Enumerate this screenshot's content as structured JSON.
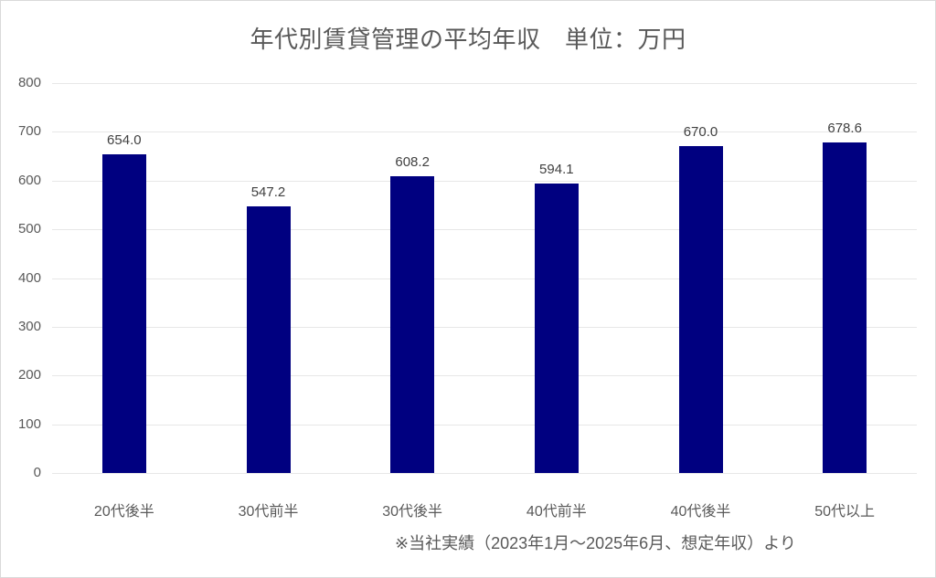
{
  "chart_data": {
    "type": "bar",
    "title": "年代別賃貸管理の平均年収　単位：万円",
    "categories": [
      "20代後半",
      "30代前半",
      "30代後半",
      "40代前半",
      "40代後半",
      "50代以上"
    ],
    "values": [
      654.0,
      547.2,
      608.2,
      594.1,
      670.0,
      678.6
    ],
    "value_labels": [
      "654.0",
      "547.2",
      "608.2",
      "594.1",
      "670.0",
      "678.6"
    ],
    "ylim": [
      0,
      800
    ],
    "ytick_step": 100,
    "yticks": [
      0,
      100,
      200,
      300,
      400,
      500,
      600,
      700,
      800
    ],
    "grid": true,
    "legend": "none",
    "footer_note": "※当社実績（2023年1月～2025年6月、想定年収）より",
    "colors": {
      "bar": "#000080",
      "gridline": "#e7e7e7",
      "axis_text": "#595959",
      "value_label_text": "#404040",
      "title_text": "#595959",
      "frame_border": "#d9d9d9",
      "background": "#ffffff"
    }
  }
}
